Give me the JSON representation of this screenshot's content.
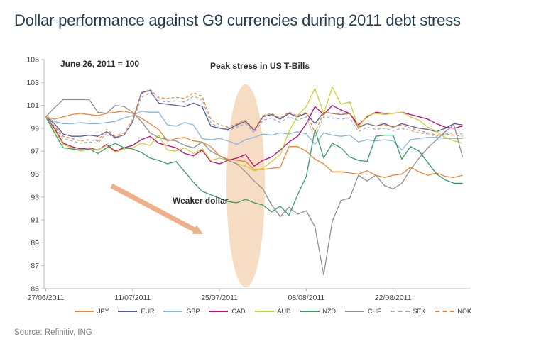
{
  "title": "Dollar performance against G9 currencies during 2011 debt stress",
  "source": "Source: Refinitiv, ING",
  "annotations": {
    "base_note": "June 26, 2011 = 100",
    "peak_note": "Peak stress in US T-Bills",
    "weaker_note": "Weaker dollar"
  },
  "colors": {
    "title_text": "#233c4e",
    "highlight_ellipse": "#e89a55",
    "arrow": "#edb088",
    "axis": "#b9b9b9"
  },
  "chart_data": {
    "type": "line",
    "title": "Dollar performance against G9 currencies during 2011 debt stress",
    "xlabel": "",
    "ylabel": "",
    "ylim": [
      85,
      105
    ],
    "grid": false,
    "legend_position": "bottom",
    "y_ticks": [
      105,
      103,
      101,
      99,
      97,
      95,
      93,
      91,
      89,
      87,
      85
    ],
    "x_ticks": [
      {
        "label": "27/06/2011",
        "index": 0
      },
      {
        "label": "11/07/2011",
        "index": 10
      },
      {
        "label": "25/07/2011",
        "index": 20
      },
      {
        "label": "08/08/2011",
        "index": 30
      },
      {
        "label": "22/08/2011",
        "index": 40
      }
    ],
    "series": [
      {
        "name": "JPY",
        "color": "#ef8532",
        "dash": false,
        "values": [
          100,
          99.8,
          100.0,
          100.2,
          100.3,
          100.2,
          100.1,
          100.3,
          100.4,
          100.5,
          100.3,
          99.9,
          99.4,
          98.9,
          97.9,
          98.1,
          98.2,
          97.9,
          97.8,
          97.4,
          96.6,
          96.3,
          96.2,
          96.1,
          95.4,
          95.4,
          95.5,
          95.6,
          97.4,
          97.4,
          97.0,
          96.3,
          95.9,
          95.2,
          95.2,
          95.1,
          95.0,
          95.3,
          94.9,
          94.7,
          94.9,
          95.0,
          95.6,
          95.2,
          94.9,
          95.1,
          94.8,
          94.7,
          94.9
        ]
      },
      {
        "name": "EUR",
        "color": "#555aa0",
        "dash": false,
        "values": [
          100,
          99.4,
          98.5,
          98.3,
          98.3,
          98.4,
          98.3,
          98.7,
          98.2,
          98.4,
          99.6,
          102.1,
          102.3,
          101.2,
          101.1,
          101.0,
          100.9,
          101.2,
          100.9,
          99.2,
          99.0,
          98.9,
          99.3,
          99.6,
          98.8,
          100.0,
          100.2,
          99.8,
          100.3,
          100.0,
          100.3,
          99.4,
          100.4,
          100.3,
          100.2,
          100.3,
          99.1,
          99.4,
          99.2,
          99.4,
          99.1,
          99.4,
          99.2,
          99.0,
          98.9,
          98.7,
          99.0,
          99.4,
          99.3
        ]
      },
      {
        "name": "GBP",
        "color": "#88b7de",
        "dash": false,
        "values": [
          100,
          99.6,
          99.4,
          99.4,
          99.5,
          99.4,
          99.4,
          99.5,
          99.6,
          99.9,
          100.1,
          100.5,
          100.4,
          100.4,
          99.3,
          99.2,
          99.5,
          99.3,
          98.1,
          98.0,
          98.1,
          97.9,
          97.6,
          98.0,
          98.2,
          98.5,
          98.4,
          98.6,
          98.5,
          98.7,
          98.5,
          97.6,
          98.6,
          98.4,
          98.3,
          98.4,
          97.8,
          98.0,
          97.9,
          98.0,
          97.9,
          97.1,
          98.0,
          98.1,
          98.2,
          98.2,
          98.1,
          98.1,
          98.1
        ]
      },
      {
        "name": "CAD",
        "color": "#c40a78",
        "dash": false,
        "values": [
          100,
          99.0,
          97.7,
          97.4,
          97.2,
          97.3,
          97.1,
          97.6,
          97.0,
          97.3,
          97.5,
          98.0,
          98.3,
          97.7,
          97.5,
          97.3,
          96.8,
          96.6,
          97.1,
          96.1,
          95.9,
          96.2,
          96.4,
          96.7,
          95.7,
          96.2,
          96.5,
          97.1,
          97.8,
          98.3,
          99.4,
          100.9,
          100.2,
          101.0,
          100.6,
          100.3,
          99.3,
          100.0,
          100.4,
          100.3,
          100.3,
          100.4,
          100.2,
          100.0,
          99.8,
          99.4,
          99.1,
          99.0,
          99.2
        ]
      },
      {
        "name": "AUD",
        "color": "#ccd234",
        "dash": false,
        "values": [
          100,
          98.8,
          97.6,
          97.3,
          97.0,
          97.2,
          97.1,
          97.5,
          96.9,
          97.2,
          97.3,
          97.7,
          97.5,
          98.4,
          97.1,
          97.0,
          97.3,
          96.8,
          97.2,
          96.2,
          96.4,
          96.2,
          95.9,
          95.7,
          95.3,
          95.5,
          96.1,
          96.7,
          98.7,
          100.1,
          100.9,
          102.5,
          100.3,
          102.6,
          101.1,
          101.3,
          99.1,
          100.1,
          100.3,
          100.2,
          100.3,
          100.4,
          100.0,
          99.7,
          99.1,
          98.7,
          98.2,
          97.9,
          97.7
        ]
      },
      {
        "name": "NZD",
        "color": "#359e64",
        "dash": false,
        "values": [
          100,
          98.6,
          97.3,
          97.2,
          97.1,
          97.2,
          96.8,
          97.3,
          97.7,
          97.3,
          97.2,
          96.9,
          96.4,
          96.2,
          95.9,
          96.1,
          95.2,
          94.3,
          93.5,
          93.2,
          92.9,
          92.6,
          92.5,
          92.8,
          92.5,
          92.3,
          91.7,
          92.2,
          91.4,
          93.2,
          94.8,
          98.9,
          96.4,
          97.7,
          97.3,
          96.5,
          96.2,
          96.1,
          98.3,
          98.4,
          98.4,
          96.3,
          97.4,
          97.0,
          96.0,
          95.0,
          94.5,
          94.2,
          94.2
        ]
      },
      {
        "name": "CHF",
        "color": "#909090",
        "dash": false,
        "values": [
          100,
          100.8,
          101.5,
          101.5,
          101.5,
          101.5,
          100.4,
          100.3,
          101.0,
          100.9,
          100.4,
          99.6,
          98.6,
          98.2,
          98.0,
          97.9,
          97.5,
          97.3,
          97.8,
          97.0,
          96.6,
          96.2,
          95.9,
          95.2,
          94.4,
          93.7,
          92.3,
          91.3,
          92.1,
          91.5,
          91.8,
          90.4,
          86.2,
          90.9,
          92.7,
          92.9,
          94.9,
          94.4,
          94.9,
          94.0,
          93.7,
          94.2,
          95.4,
          96.4,
          97.3,
          98.0,
          98.7,
          99.3,
          96.5
        ]
      },
      {
        "name": "SEK",
        "color": "#a6abbd",
        "dash": true,
        "values": [
          100,
          99.1,
          98.1,
          97.9,
          97.7,
          97.8,
          97.7,
          98.6,
          98.1,
          98.4,
          99.5,
          101.7,
          102.1,
          101.4,
          101.3,
          101.4,
          101.3,
          101.8,
          101.5,
          99.5,
          99.0,
          98.8,
          99.1,
          99.4,
          98.6,
          99.7,
          99.9,
          99.5,
          100.0,
          99.7,
          100.0,
          98.2,
          100.0,
          99.9,
          99.8,
          99.9,
          98.7,
          99.1,
          98.9,
          99.0,
          98.8,
          99.0,
          98.8,
          98.6,
          98.5,
          98.3,
          98.5,
          98.6,
          98.5
        ]
      },
      {
        "name": "NOK",
        "color": "#ef8532",
        "dash": true,
        "values": [
          100,
          99.2,
          98.3,
          98.1,
          97.9,
          98.0,
          97.9,
          98.9,
          98.3,
          98.6,
          99.8,
          102.0,
          102.4,
          101.7,
          101.6,
          101.7,
          101.6,
          102.1,
          101.8,
          99.8,
          99.3,
          99.1,
          99.4,
          99.7,
          98.9,
          100.1,
          100.3,
          99.9,
          100.4,
          100.1,
          100.4,
          98.6,
          100.4,
          100.3,
          100.2,
          100.3,
          99.0,
          99.4,
          99.2,
          99.3,
          99.1,
          99.3,
          99.0,
          98.8,
          98.6,
          98.4,
          98.5,
          98.4,
          98.3
        ]
      }
    ]
  }
}
